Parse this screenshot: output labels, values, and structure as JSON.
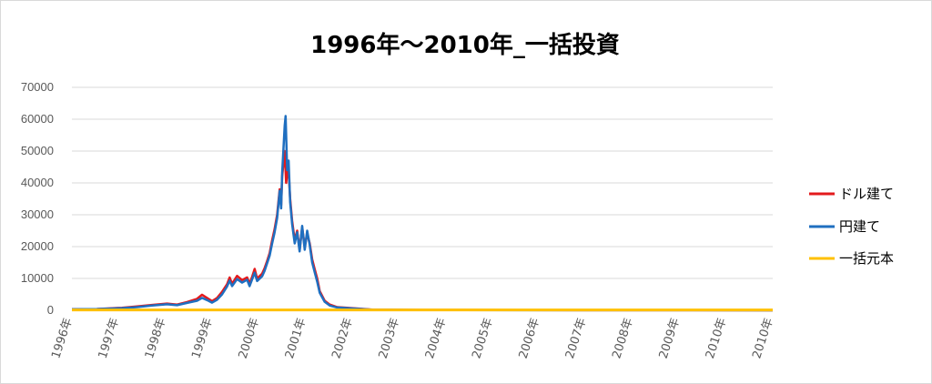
{
  "chart_data": {
    "type": "line",
    "title": "1996年～2010年_一括投資",
    "xlabel": "",
    "ylabel": "",
    "ylim": [
      0,
      70000
    ],
    "yticks": [
      0,
      10000,
      20000,
      30000,
      40000,
      50000,
      60000,
      70000
    ],
    "xlim": [
      1996,
      2010
    ],
    "xtick_labels": [
      "1996年",
      "1997年",
      "1998年",
      "1999年",
      "2000年",
      "2001年",
      "2002年",
      "2003年",
      "2004年",
      "2005年",
      "2006年",
      "2007年",
      "2008年",
      "2009年",
      "2010年",
      "2010年"
    ],
    "grid": true,
    "legend_position": "right",
    "series": [
      {
        "name": "ドル建て",
        "color": "#e31a1c",
        "points": [
          [
            1996.0,
            300
          ],
          [
            1996.5,
            400
          ],
          [
            1997.0,
            800
          ],
          [
            1997.3,
            1200
          ],
          [
            1997.6,
            1700
          ],
          [
            1997.9,
            2100
          ],
          [
            1998.1,
            1800
          ],
          [
            1998.3,
            2600
          ],
          [
            1998.5,
            3600
          ],
          [
            1998.6,
            4900
          ],
          [
            1998.7,
            3900
          ],
          [
            1998.8,
            2900
          ],
          [
            1998.9,
            3900
          ],
          [
            1999.0,
            5800
          ],
          [
            1999.1,
            8200
          ],
          [
            1999.15,
            10300
          ],
          [
            1999.2,
            8300
          ],
          [
            1999.3,
            10800
          ],
          [
            1999.4,
            9500
          ],
          [
            1999.5,
            10300
          ],
          [
            1999.55,
            8400
          ],
          [
            1999.6,
            10500
          ],
          [
            1999.65,
            13000
          ],
          [
            1999.7,
            10000
          ],
          [
            1999.8,
            11500
          ],
          [
            1999.85,
            13200
          ],
          [
            1999.9,
            15500
          ],
          [
            1999.95,
            18000
          ],
          [
            2000.0,
            22000
          ],
          [
            2000.05,
            25500
          ],
          [
            2000.1,
            30000
          ],
          [
            2000.15,
            38000
          ],
          [
            2000.18,
            33000
          ],
          [
            2000.2,
            42000
          ],
          [
            2000.25,
            50000
          ],
          [
            2000.28,
            40000
          ],
          [
            2000.32,
            46000
          ],
          [
            2000.36,
            35000
          ],
          [
            2000.4,
            28000
          ],
          [
            2000.45,
            22000
          ],
          [
            2000.5,
            25000
          ],
          [
            2000.55,
            19000
          ],
          [
            2000.6,
            26000
          ],
          [
            2000.65,
            20000
          ],
          [
            2000.7,
            24000
          ],
          [
            2000.75,
            21000
          ],
          [
            2000.8,
            16000
          ],
          [
            2000.85,
            13000
          ],
          [
            2000.9,
            10000
          ],
          [
            2000.95,
            6000
          ],
          [
            2001.05,
            3000
          ],
          [
            2001.15,
            1800
          ],
          [
            2001.3,
            1000
          ],
          [
            2001.5,
            800
          ],
          [
            2002.0,
            200
          ],
          [
            2003.0,
            100
          ],
          [
            2005.0,
            50
          ],
          [
            2008.0,
            30
          ],
          [
            2010.0,
            10
          ]
        ]
      },
      {
        "name": "円建て",
        "color": "#1f6fc0",
        "points": [
          [
            1996.0,
            300
          ],
          [
            1996.5,
            400
          ],
          [
            1997.0,
            700
          ],
          [
            1997.3,
            1000
          ],
          [
            1997.6,
            1500
          ],
          [
            1997.9,
            1900
          ],
          [
            1998.1,
            1600
          ],
          [
            1998.3,
            2300
          ],
          [
            1998.5,
            3000
          ],
          [
            1998.6,
            3900
          ],
          [
            1998.7,
            3200
          ],
          [
            1998.8,
            2400
          ],
          [
            1998.9,
            3300
          ],
          [
            1999.0,
            5000
          ],
          [
            1999.1,
            7500
          ],
          [
            1999.15,
            9300
          ],
          [
            1999.2,
            7600
          ],
          [
            1999.3,
            9800
          ],
          [
            1999.4,
            8700
          ],
          [
            1999.5,
            9600
          ],
          [
            1999.55,
            7600
          ],
          [
            1999.6,
            9700
          ],
          [
            1999.65,
            11800
          ],
          [
            1999.7,
            9200
          ],
          [
            1999.8,
            10700
          ],
          [
            1999.85,
            12400
          ],
          [
            1999.9,
            14800
          ],
          [
            1999.95,
            17200
          ],
          [
            2000.0,
            21000
          ],
          [
            2000.05,
            24500
          ],
          [
            2000.1,
            29000
          ],
          [
            2000.15,
            37500
          ],
          [
            2000.18,
            32000
          ],
          [
            2000.2,
            43000
          ],
          [
            2000.25,
            58000
          ],
          [
            2000.27,
            61000
          ],
          [
            2000.3,
            44000
          ],
          [
            2000.33,
            47000
          ],
          [
            2000.36,
            34000
          ],
          [
            2000.4,
            27000
          ],
          [
            2000.45,
            21000
          ],
          [
            2000.5,
            24500
          ],
          [
            2000.55,
            18500
          ],
          [
            2000.6,
            26500
          ],
          [
            2000.65,
            19000
          ],
          [
            2000.7,
            25000
          ],
          [
            2000.75,
            20500
          ],
          [
            2000.8,
            15000
          ],
          [
            2000.85,
            12000
          ],
          [
            2000.9,
            9000
          ],
          [
            2000.95,
            5500
          ],
          [
            2001.05,
            2700
          ],
          [
            2001.15,
            1500
          ],
          [
            2001.3,
            900
          ],
          [
            2001.5,
            700
          ],
          [
            2002.0,
            180
          ],
          [
            2003.0,
            90
          ],
          [
            2005.0,
            40
          ],
          [
            2008.0,
            20
          ],
          [
            2010.0,
            10
          ]
        ]
      },
      {
        "name": "一括元本",
        "color": "#ffc000",
        "points": [
          [
            1996.0,
            100
          ],
          [
            2010.0,
            100
          ]
        ]
      }
    ]
  }
}
